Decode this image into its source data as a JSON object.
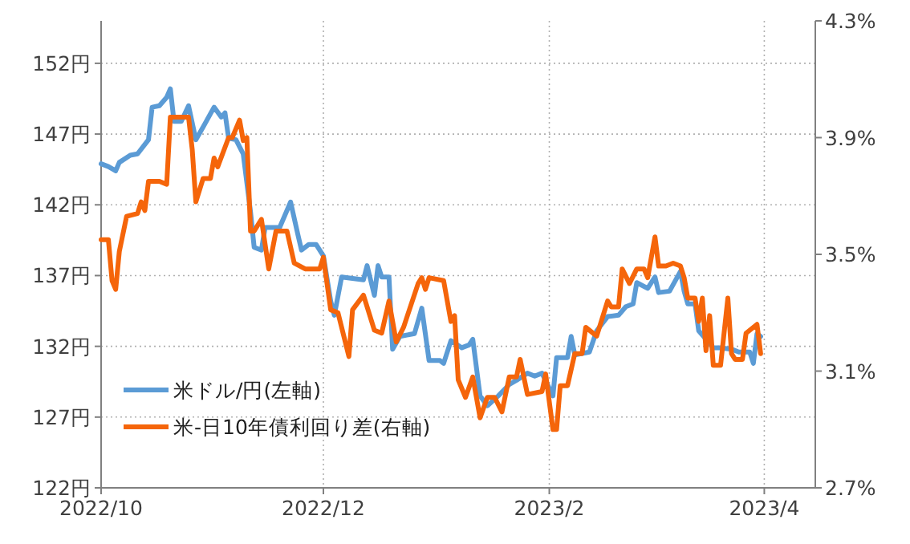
{
  "chart_data": {
    "type": "line",
    "xlim": [
      "2022-10-01",
      "2023-04-15"
    ],
    "xticks": [
      {
        "value": "2022-10-01",
        "label": "2022/10"
      },
      {
        "value": "2022-12-01",
        "label": "2022/12"
      },
      {
        "value": "2023-02-01",
        "label": "2023/2"
      },
      {
        "value": "2023-04-01",
        "label": "2023/4"
      }
    ],
    "ylim": [
      122,
      155
    ],
    "yticks": [
      {
        "value": 122,
        "label": "122円"
      },
      {
        "value": 127,
        "label": "127円"
      },
      {
        "value": 132,
        "label": "132円"
      },
      {
        "value": 137,
        "label": "137円"
      },
      {
        "value": 142,
        "label": "142円"
      },
      {
        "value": 147,
        "label": "147円"
      },
      {
        "value": 152,
        "label": "152円"
      }
    ],
    "y2lim": [
      2.7,
      4.3
    ],
    "y2ticks": [
      {
        "value": 2.7,
        "label": "2.7%"
      },
      {
        "value": 3.1,
        "label": "3.1%"
      },
      {
        "value": 3.5,
        "label": "3.5%"
      },
      {
        "value": 3.9,
        "label": "3.9%"
      },
      {
        "value": 4.3,
        "label": "4.3%"
      }
    ],
    "grid": true,
    "legend": "bottom left",
    "series": [
      {
        "name": "米ドル/円(左軸)",
        "color": "#5b9bd5",
        "x": [
          "2022-10-01",
          "2022-10-03",
          "2022-10-05",
          "2022-10-06",
          "2022-10-09",
          "2022-10-11",
          "2022-10-14",
          "2022-10-15",
          "2022-10-17",
          "2022-10-19",
          "2022-10-20",
          "2022-10-21",
          "2022-10-23",
          "2022-10-25",
          "2022-10-27",
          "2022-10-29",
          "2022-11-01",
          "2022-11-03",
          "2022-11-04",
          "2022-11-05",
          "2022-11-07",
          "2022-11-09",
          "2022-11-11",
          "2022-11-12",
          "2022-11-14",
          "2022-11-15",
          "2022-11-19",
          "2022-11-22",
          "2022-11-24",
          "2022-11-25",
          "2022-11-27",
          "2022-11-29",
          "2022-12-01",
          "2022-12-03",
          "2022-12-04",
          "2022-12-06",
          "2022-12-12",
          "2022-12-13",
          "2022-12-15",
          "2022-12-16",
          "2022-12-17",
          "2022-12-19",
          "2022-12-20",
          "2022-12-22",
          "2022-12-26",
          "2022-12-28",
          "2022-12-30",
          "2023-01-02",
          "2023-01-03",
          "2023-01-05",
          "2023-01-08",
          "2023-01-10",
          "2023-01-11",
          "2023-01-13",
          "2023-01-15",
          "2023-01-18",
          "2023-01-21",
          "2023-01-23",
          "2023-01-26",
          "2023-01-28",
          "2023-01-30",
          "2023-02-02",
          "2023-02-03",
          "2023-02-06",
          "2023-02-07",
          "2023-02-08",
          "2023-02-12",
          "2023-02-14",
          "2023-02-17",
          "2023-02-20",
          "2023-02-22",
          "2023-02-24",
          "2023-02-25",
          "2023-02-28",
          "2023-03-02",
          "2023-03-03",
          "2023-03-06",
          "2023-03-09",
          "2023-03-10",
          "2023-03-11",
          "2023-03-13",
          "2023-03-14",
          "2023-03-16",
          "2023-03-18",
          "2023-03-20",
          "2023-03-23",
          "2023-03-25",
          "2023-03-28",
          "2023-03-29",
          "2023-03-30",
          "2023-03-31"
        ],
        "values": [
          144.9,
          144.7,
          144.4,
          145.0,
          145.5,
          145.6,
          146.6,
          148.9,
          149.0,
          149.6,
          150.2,
          147.9,
          147.9,
          149.0,
          146.6,
          147.5,
          148.9,
          148.2,
          148.5,
          146.7,
          146.6,
          145.6,
          141.5,
          139.0,
          138.8,
          140.4,
          140.4,
          142.2,
          139.9,
          138.8,
          139.2,
          139.2,
          138.4,
          135.2,
          134.2,
          136.9,
          136.7,
          137.7,
          135.6,
          137.7,
          136.9,
          136.9,
          131.8,
          132.7,
          132.9,
          134.7,
          131.0,
          131.0,
          130.8,
          132.4,
          131.9,
          132.1,
          132.5,
          128.5,
          127.8,
          128.5,
          129.3,
          129.6,
          130.1,
          129.9,
          130.1,
          128.5,
          131.2,
          131.2,
          132.7,
          131.4,
          131.6,
          133.1,
          134.1,
          134.2,
          134.8,
          135.0,
          136.5,
          136.1,
          136.9,
          135.8,
          135.9,
          137.3,
          135.9,
          135.0,
          135.0,
          133.1,
          132.5,
          131.9,
          131.9,
          131.8,
          131.6,
          131.6,
          130.8,
          132.9,
          132.7
        ]
      },
      {
        "name": "米-日10年債利回り差(右軸)",
        "color": "#f5650a",
        "axis": "y2",
        "x": [
          "2022-10-01",
          "2022-10-03",
          "2022-10-04",
          "2022-10-05",
          "2022-10-06",
          "2022-10-08",
          "2022-10-11",
          "2022-10-12",
          "2022-10-13",
          "2022-10-14",
          "2022-10-17",
          "2022-10-19",
          "2022-10-20",
          "2022-10-23",
          "2022-10-24",
          "2022-10-25",
          "2022-10-26",
          "2022-10-27",
          "2022-10-29",
          "2022-10-31",
          "2022-11-01",
          "2022-11-02",
          "2022-11-05",
          "2022-11-06",
          "2022-11-08",
          "2022-11-09",
          "2022-11-10",
          "2022-11-11",
          "2022-11-12",
          "2022-11-14",
          "2022-11-16",
          "2022-11-18",
          "2022-11-21",
          "2022-11-23",
          "2022-11-26",
          "2022-11-30",
          "2022-12-01",
          "2022-12-03",
          "2022-12-05",
          "2022-12-08",
          "2022-12-09",
          "2022-12-12",
          "2022-12-15",
          "2022-12-17",
          "2022-12-19",
          "2022-12-21",
          "2022-12-23",
          "2022-12-27",
          "2022-12-28",
          "2022-12-29",
          "2022-12-30",
          "2023-01-03",
          "2023-01-05",
          "2023-01-06",
          "2023-01-07",
          "2023-01-09",
          "2023-01-11",
          "2023-01-13",
          "2023-01-15",
          "2023-01-17",
          "2023-01-19",
          "2023-01-21",
          "2023-01-23",
          "2023-01-24",
          "2023-01-26",
          "2023-01-30",
          "2023-01-31",
          "2023-02-02",
          "2023-02-03",
          "2023-02-04",
          "2023-02-06",
          "2023-02-08",
          "2023-02-10",
          "2023-02-11",
          "2023-02-14",
          "2023-02-17",
          "2023-02-18",
          "2023-02-20",
          "2023-02-21",
          "2023-02-23",
          "2023-02-25",
          "2023-02-27",
          "2023-02-28",
          "2023-03-02",
          "2023-03-03",
          "2023-03-05",
          "2023-03-07",
          "2023-03-09",
          "2023-03-10",
          "2023-03-11",
          "2023-03-13",
          "2023-03-14",
          "2023-03-15",
          "2023-03-16",
          "2023-03-17",
          "2023-03-18",
          "2023-03-20",
          "2023-03-22",
          "2023-03-23",
          "2023-03-24",
          "2023-03-26",
          "2023-03-27",
          "2023-03-30",
          "2023-03-31"
        ],
        "values": [
          3.55,
          3.55,
          3.41,
          3.38,
          3.51,
          3.63,
          3.64,
          3.68,
          3.65,
          3.75,
          3.75,
          3.74,
          3.97,
          3.97,
          3.97,
          3.97,
          3.86,
          3.68,
          3.76,
          3.76,
          3.83,
          3.8,
          3.9,
          3.9,
          3.96,
          3.89,
          3.9,
          3.58,
          3.58,
          3.62,
          3.45,
          3.58,
          3.58,
          3.47,
          3.45,
          3.45,
          3.49,
          3.31,
          3.3,
          3.15,
          3.31,
          3.36,
          3.24,
          3.23,
          3.34,
          3.2,
          3.25,
          3.4,
          3.42,
          3.38,
          3.42,
          3.41,
          3.27,
          3.29,
          3.07,
          3.01,
          3.08,
          2.94,
          3.01,
          3.01,
          2.96,
          3.08,
          3.08,
          3.14,
          3.02,
          3.03,
          3.09,
          2.9,
          2.9,
          3.05,
          3.05,
          3.16,
          3.16,
          3.25,
          3.22,
          3.34,
          3.32,
          3.32,
          3.45,
          3.4,
          3.45,
          3.45,
          3.42,
          3.56,
          3.46,
          3.46,
          3.47,
          3.46,
          3.42,
          3.35,
          3.35,
          3.27,
          3.35,
          3.17,
          3.29,
          3.12,
          3.12,
          3.35,
          3.16,
          3.14,
          3.14,
          3.23,
          3.26,
          3.16
        ]
      }
    ]
  }
}
